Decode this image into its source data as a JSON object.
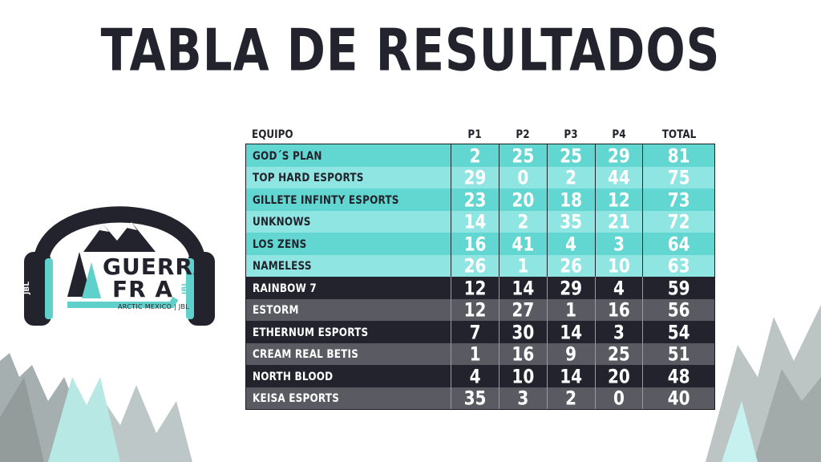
{
  "page_title": "TABLA DE RESULTADOS",
  "logo": {
    "line1": "GUERRA",
    "line2": "FR A",
    "subtitle": "ARCTIC MEXICO | JBL",
    "brand": "JBL"
  },
  "table": {
    "headers": {
      "team": "EQUIPO",
      "p1": "P1",
      "p2": "P2",
      "p3": "P3",
      "p4": "P4",
      "total": "TOTAL"
    },
    "rows": [
      {
        "team": "GOD´S PLAN",
        "p1": "2",
        "p2": "25",
        "p3": "25",
        "p4": "29",
        "total": "81",
        "style": "top-a"
      },
      {
        "team": "TOP HARD ESPORTS",
        "p1": "29",
        "p2": "0",
        "p3": "2",
        "p4": "44",
        "total": "75",
        "style": "top-b"
      },
      {
        "team": "GILLETE INFINTY ESPORTS",
        "p1": "23",
        "p2": "20",
        "p3": "18",
        "p4": "12",
        "total": "73",
        "style": "top-a"
      },
      {
        "team": "UNKNOWS",
        "p1": "14",
        "p2": "2",
        "p3": "35",
        "p4": "21",
        "total": "72",
        "style": "top-b"
      },
      {
        "team": "LOS ZENS",
        "p1": "16",
        "p2": "41",
        "p3": "4",
        "p4": "3",
        "total": "64",
        "style": "top-a"
      },
      {
        "team": "NAMELESS",
        "p1": "26",
        "p2": "1",
        "p3": "26",
        "p4": "10",
        "total": "63",
        "style": "top-b"
      },
      {
        "team": "RAINBOW 7",
        "p1": "12",
        "p2": "14",
        "p3": "29",
        "p4": "4",
        "total": "59",
        "style": "dark"
      },
      {
        "team": "ESTORM",
        "p1": "12",
        "p2": "27",
        "p3": "1",
        "p4": "16",
        "total": "56",
        "style": "gray"
      },
      {
        "team": "ETHERNUM ESPORTS",
        "p1": "7",
        "p2": "30",
        "p3": "14",
        "p4": "3",
        "total": "54",
        "style": "dark"
      },
      {
        "team": "CREAM REAL BETIS",
        "p1": "1",
        "p2": "16",
        "p3": "9",
        "p4": "25",
        "total": "51",
        "style": "gray"
      },
      {
        "team": "NORTH BLOOD",
        "p1": "4",
        "p2": "10",
        "p3": "14",
        "p4": "20",
        "total": "48",
        "style": "dark"
      },
      {
        "team": "KEISA ESPORTS",
        "p1": "35",
        "p2": "3",
        "p3": "2",
        "p4": "0",
        "total": "40",
        "style": "gray"
      }
    ]
  },
  "colors": {
    "teal": "#62d7d2",
    "teal_light": "#8fe5e1",
    "dark": "#23232d",
    "gray": "#5a5a63"
  }
}
